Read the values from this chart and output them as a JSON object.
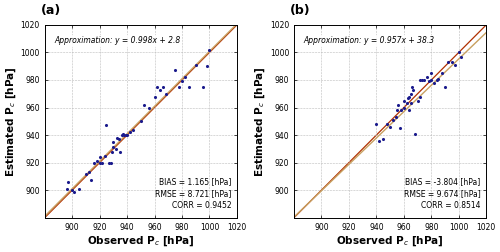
{
  "panel_a": {
    "label": "(a)",
    "xlabel": "Observed P$_c$ [hPa]",
    "ylabel": "Estimated P$_c$ [hPa]",
    "approx_text": "Approximation: y = 0.998x + 2.8",
    "stats_text": "BIAS = 1.165 [hPa]\nRMSE = 8.721 [hPa]\nCORR = 0.9452",
    "xlim": [
      880,
      1020
    ],
    "ylim": [
      880,
      1020
    ],
    "xticks": [
      880,
      900,
      920,
      940,
      960,
      980,
      1000,
      1020
    ],
    "yticks": [
      880,
      900,
      920,
      940,
      960,
      980,
      1000,
      1020
    ],
    "fit_slope": 0.998,
    "fit_intercept": 2.8,
    "scatter_x": [
      896,
      897,
      900,
      901,
      905,
      910,
      912,
      914,
      916,
      918,
      920,
      920,
      922,
      924,
      925,
      927,
      928,
      929,
      930,
      930,
      932,
      933,
      934,
      935,
      936,
      937,
      938,
      939,
      940,
      942,
      944,
      950,
      952,
      956,
      960,
      962,
      964,
      966,
      968,
      975,
      978,
      980,
      982,
      985,
      990,
      995,
      998,
      1000
    ],
    "scatter_y": [
      901,
      906,
      900,
      899,
      901,
      912,
      913,
      907,
      920,
      921,
      920,
      924,
      920,
      925,
      947,
      920,
      920,
      928,
      931,
      935,
      930,
      938,
      937,
      928,
      940,
      941,
      940,
      940,
      940,
      942,
      944,
      950,
      962,
      960,
      968,
      975,
      973,
      975,
      970,
      987,
      975,
      979,
      982,
      975,
      991,
      975,
      990,
      1002
    ]
  },
  "panel_b": {
    "label": "(b)",
    "xlabel": "Observed P$_c$ [hPa]",
    "ylabel": "Estimated P$_c$ [hPa]",
    "approx_text": "Approximation: y = 0.957x + 38.3",
    "stats_text": "BIAS = -3.804 [hPa]\nRMSE = 9.674 [hPa]\nCORR = 0.8514",
    "xlim": [
      880,
      1020
    ],
    "ylim": [
      880,
      1020
    ],
    "xticks": [
      880,
      900,
      920,
      940,
      960,
      980,
      1000,
      1020
    ],
    "yticks": [
      880,
      900,
      920,
      940,
      960,
      980,
      1000,
      1020
    ],
    "fit_slope": 0.957,
    "fit_intercept": 38.3,
    "scatter_x": [
      940,
      942,
      945,
      948,
      950,
      952,
      954,
      955,
      956,
      957,
      958,
      960,
      960,
      962,
      963,
      964,
      964,
      965,
      965,
      966,
      967,
      968,
      970,
      972,
      972,
      973,
      975,
      977,
      978,
      980,
      980,
      982,
      984,
      985,
      988,
      990,
      992,
      995,
      997,
      1000,
      1002
    ],
    "scatter_y": [
      948,
      936,
      937,
      948,
      946,
      951,
      953,
      958,
      962,
      945,
      958,
      960,
      965,
      963,
      967,
      968,
      958,
      963,
      970,
      975,
      973,
      941,
      965,
      968,
      980,
      980,
      980,
      982,
      979,
      980,
      985,
      978,
      980,
      981,
      985,
      975,
      993,
      993,
      991,
      1000,
      997
    ]
  },
  "dot_color": "#1a1a8c",
  "fit_line_color": "#C8A060",
  "diag_line_color": "#B03000",
  "background_color": "#FFFFFF",
  "grid_color": "#BBBBBB",
  "font_size_axlabel": 7.5,
  "font_size_tick": 5.5,
  "font_size_text": 5.5,
  "font_size_panel": 9,
  "font_size_approx": 5.5
}
